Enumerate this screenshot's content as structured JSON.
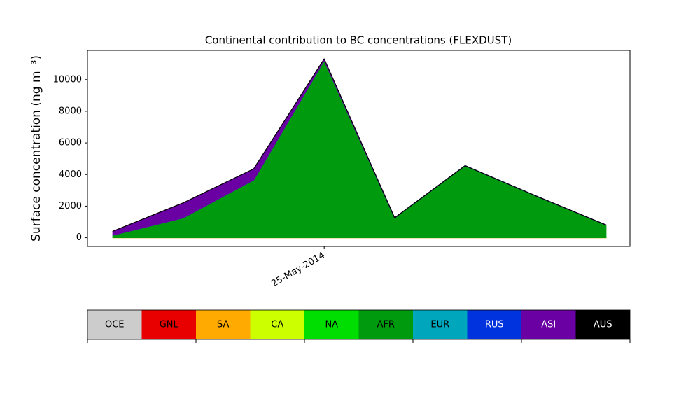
{
  "chart_data": {
    "type": "stacked-area",
    "title": "Continental contribution to BC concentrations (FLEXDUST)",
    "y_label": "Surface concentration (ng m⁻³)",
    "categories": [
      null,
      null,
      null,
      "25-May-2014",
      null,
      null,
      null,
      null
    ],
    "ylim": [
      -550,
      11850
    ],
    "yticks": [
      0,
      2000,
      4000,
      6000,
      8000,
      10000
    ],
    "series": [
      {
        "name": "OCE",
        "color": "#cccccc",
        "values": [
          0,
          0,
          0,
          0,
          0,
          0,
          0,
          0
        ]
      },
      {
        "name": "GNL",
        "color": "#e80000",
        "values": [
          0,
          0,
          0,
          0,
          0,
          0,
          0,
          0
        ]
      },
      {
        "name": "SA",
        "color": "#ffaa00",
        "values": [
          0,
          0,
          0,
          0,
          0,
          0,
          0,
          0
        ]
      },
      {
        "name": "CA",
        "color": "#ccff00",
        "values": [
          10,
          10,
          10,
          10,
          10,
          10,
          10,
          10
        ]
      },
      {
        "name": "NA",
        "color": "#00dd00",
        "values": [
          0,
          0,
          0,
          0,
          0,
          0,
          0,
          0
        ]
      },
      {
        "name": "AFR",
        "color": "#009a0e",
        "values": [
          150,
          1250,
          3650,
          11200,
          1250,
          4550,
          2650,
          800
        ]
      },
      {
        "name": "EUR",
        "color": "#00a6bc",
        "values": [
          0,
          0,
          0,
          0,
          0,
          0,
          0,
          0
        ]
      },
      {
        "name": "RUS",
        "color": "#0033dd",
        "values": [
          0,
          0,
          0,
          0,
          0,
          0,
          0,
          0
        ]
      },
      {
        "name": "ASI",
        "color": "#6a00a3",
        "values": [
          250,
          950,
          700,
          100,
          0,
          0,
          0,
          0
        ]
      },
      {
        "name": "AUS",
        "color": "#000000",
        "values": [
          0,
          0,
          0,
          0,
          0,
          0,
          0,
          0
        ]
      }
    ]
  }
}
